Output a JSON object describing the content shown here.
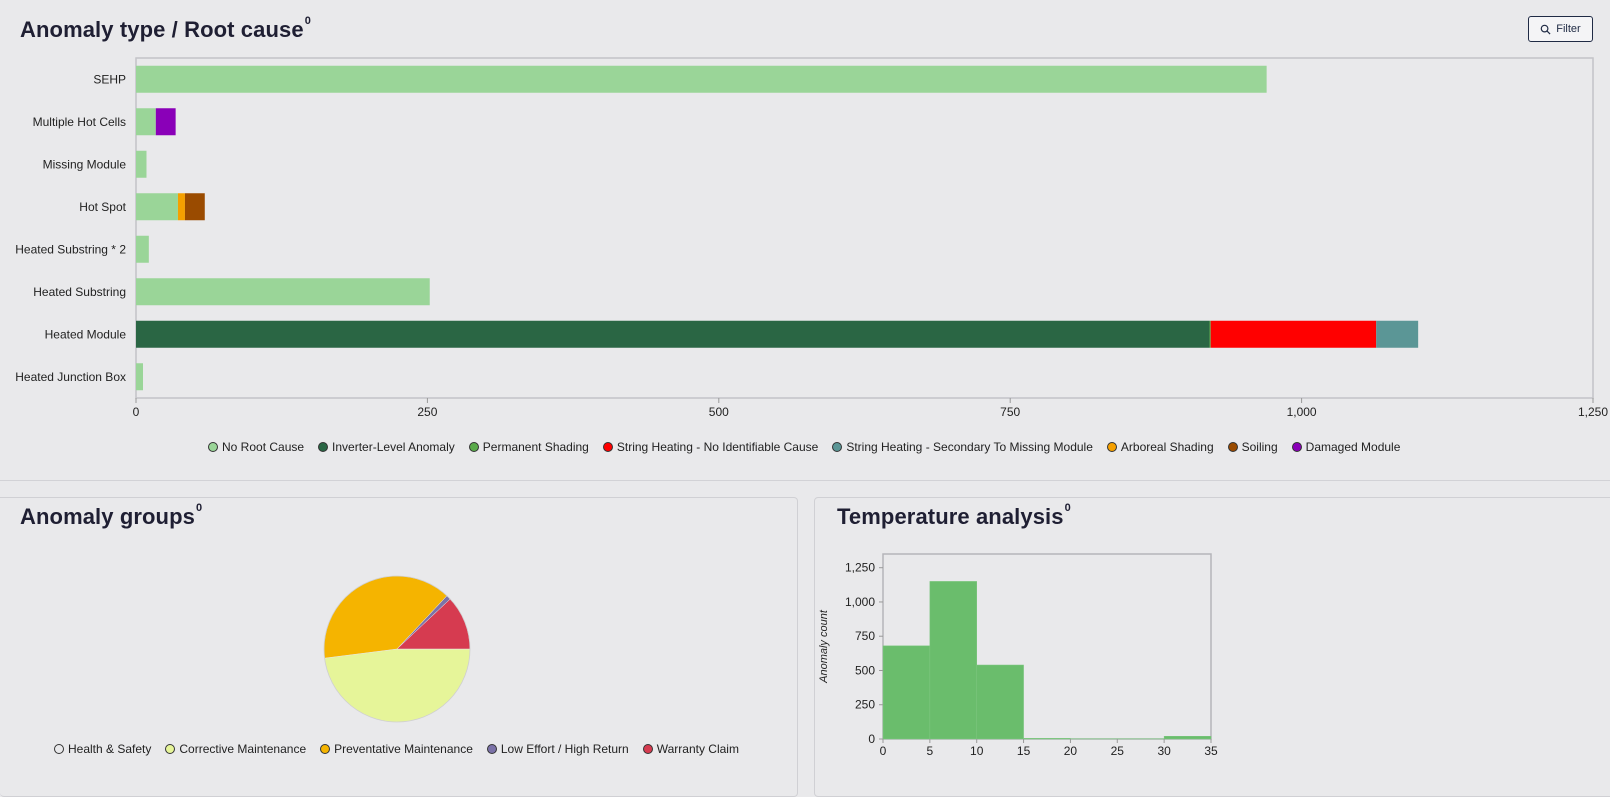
{
  "anomaly_type": {
    "title": "Anomaly type / Root cause",
    "info_mark": "0",
    "filter_label": "Filter",
    "legend": [
      {
        "label": "No Root Cause",
        "color": "#9ad598"
      },
      {
        "label": "Inverter-Level Anomaly",
        "color": "#2a6644"
      },
      {
        "label": "Permanent Shading",
        "color": "#5aaa4a"
      },
      {
        "label": "String Heating - No Identifiable Cause",
        "color": "#ff0000"
      },
      {
        "label": "String Heating - Secondary To Missing Module",
        "color": "#5b9696"
      },
      {
        "label": "Arboreal Shading",
        "color": "#f5a000"
      },
      {
        "label": "Soiling",
        "color": "#9a4b00"
      },
      {
        "label": "Damaged Module",
        "color": "#8a00b8"
      }
    ]
  },
  "anomaly_groups": {
    "title": "Anomaly groups",
    "info_mark": "0",
    "legend": [
      {
        "label": "Health & Safety",
        "color": "#e9e9eb"
      },
      {
        "label": "Corrective Maintenance",
        "color": "#e6f599"
      },
      {
        "label": "Preventative Maintenance",
        "color": "#f5b400"
      },
      {
        "label": "Low Effort / High Return",
        "color": "#7b72a8"
      },
      {
        "label": "Warranty Claim",
        "color": "#d63b50"
      }
    ]
  },
  "temperature": {
    "title": "Temperature analysis",
    "info_mark": "0"
  },
  "chart_data": [
    {
      "type": "bar",
      "orientation": "horizontal",
      "stacked": true,
      "categories": [
        "SEHP",
        "Multiple Hot Cells",
        "Missing Module",
        "Hot Spot",
        "Heated Substring * 2",
        "Heated Substring",
        "Heated Module",
        "Heated Junction Box"
      ],
      "series": [
        {
          "name": "No Root Cause",
          "values": [
            970,
            17,
            9,
            36,
            11,
            252,
            0,
            6
          ]
        },
        {
          "name": "Inverter-Level Anomaly",
          "values": [
            0,
            0,
            0,
            0,
            0,
            0,
            921,
            0
          ]
        },
        {
          "name": "Permanent Shading",
          "values": [
            0,
            0,
            0,
            0,
            0,
            0,
            1,
            0
          ]
        },
        {
          "name": "String Heating - No Identifiable Cause",
          "values": [
            0,
            0,
            0,
            0,
            0,
            0,
            142,
            0
          ]
        },
        {
          "name": "String Heating - Secondary To Missing Module",
          "values": [
            0,
            0,
            0,
            0,
            0,
            0,
            36,
            0
          ]
        },
        {
          "name": "Arboreal Shading",
          "values": [
            0,
            0,
            0,
            6,
            0,
            0,
            0,
            0
          ]
        },
        {
          "name": "Soiling",
          "values": [
            0,
            0,
            0,
            17,
            0,
            0,
            0,
            0
          ]
        },
        {
          "name": "Damaged Module",
          "values": [
            0,
            17,
            0,
            0,
            0,
            0,
            0,
            0
          ]
        }
      ],
      "xlim": [
        0,
        1250
      ],
      "xticks": [
        0,
        250,
        500,
        750,
        1000,
        1250
      ],
      "xtick_labels": [
        "0",
        "250",
        "500",
        "750",
        "1,000",
        "1,250"
      ]
    },
    {
      "type": "pie",
      "labels": [
        "Health & Safety",
        "Corrective Maintenance",
        "Preventative Maintenance",
        "Low Effort / High Return",
        "Warranty Claim"
      ],
      "values": [
        0,
        48,
        39,
        1,
        12
      ],
      "colors": [
        "#e9e9eb",
        "#e6f599",
        "#f5b400",
        "#7b72a8",
        "#d63b50"
      ]
    },
    {
      "type": "bar",
      "subtype": "histogram",
      "bins": [
        [
          0,
          5
        ],
        [
          5,
          10
        ],
        [
          10,
          15
        ],
        [
          15,
          20
        ],
        [
          20,
          25
        ],
        [
          25,
          30
        ],
        [
          30,
          35
        ]
      ],
      "values": [
        680,
        1150,
        540,
        5,
        2,
        2,
        20
      ],
      "ylabel": "Anomaly count",
      "ylim": [
        0,
        1350
      ],
      "yticks": [
        0,
        250,
        500,
        750,
        1000,
        1250
      ],
      "ytick_labels": [
        "0",
        "250",
        "500",
        "750",
        "1,000",
        "1,250"
      ],
      "xticks": [
        0,
        5,
        10,
        15,
        20,
        25,
        30,
        35
      ],
      "xtick_labels": [
        "0",
        "5",
        "10",
        "15",
        "20",
        "25",
        "30",
        "35"
      ],
      "color": "#6abd6c"
    }
  ]
}
